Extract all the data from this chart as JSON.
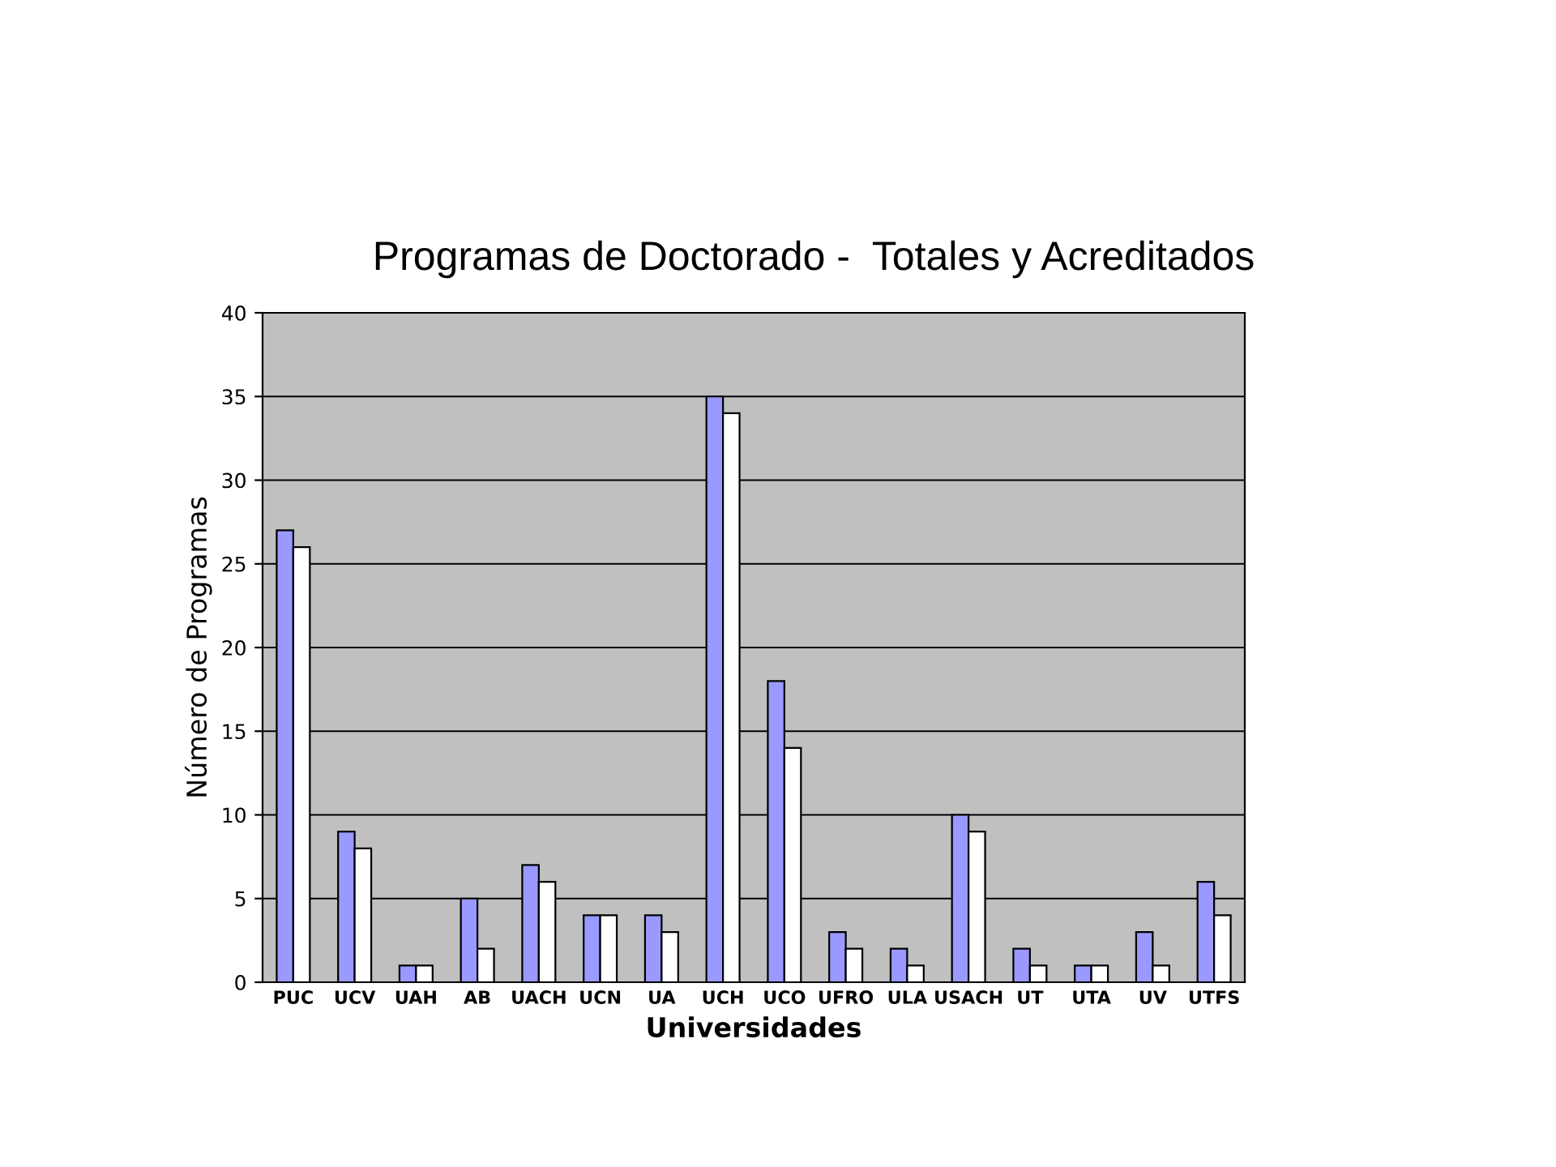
{
  "chart_data": {
    "type": "bar",
    "title": "Programas de Doctorado -  Totales y Acreditados",
    "xlabel": "Universidades",
    "ylabel": "Número de Programas",
    "categories": [
      "PUC",
      "UCV",
      "UAH",
      "AB",
      "UACH",
      "UCN",
      "UA",
      "UCH",
      "UCO",
      "UFRO",
      "ULA",
      "USACH",
      "UT",
      "UTA",
      "UV",
      "UTFS"
    ],
    "series": [
      {
        "color": "#9999ff",
        "values": [
          27,
          9,
          1,
          5,
          7,
          4,
          4,
          35,
          18,
          3,
          2,
          10,
          2,
          1,
          3,
          6
        ]
      },
      {
        "color": "#ffffff",
        "values": [
          26,
          8,
          1,
          2,
          6,
          4,
          3,
          34,
          14,
          2,
          1,
          9,
          1,
          1,
          1,
          4
        ]
      }
    ],
    "ylim": [
      0,
      40
    ],
    "yticks": [
      0,
      5,
      10,
      15,
      20,
      25,
      30,
      35,
      40
    ],
    "grid": "y"
  }
}
